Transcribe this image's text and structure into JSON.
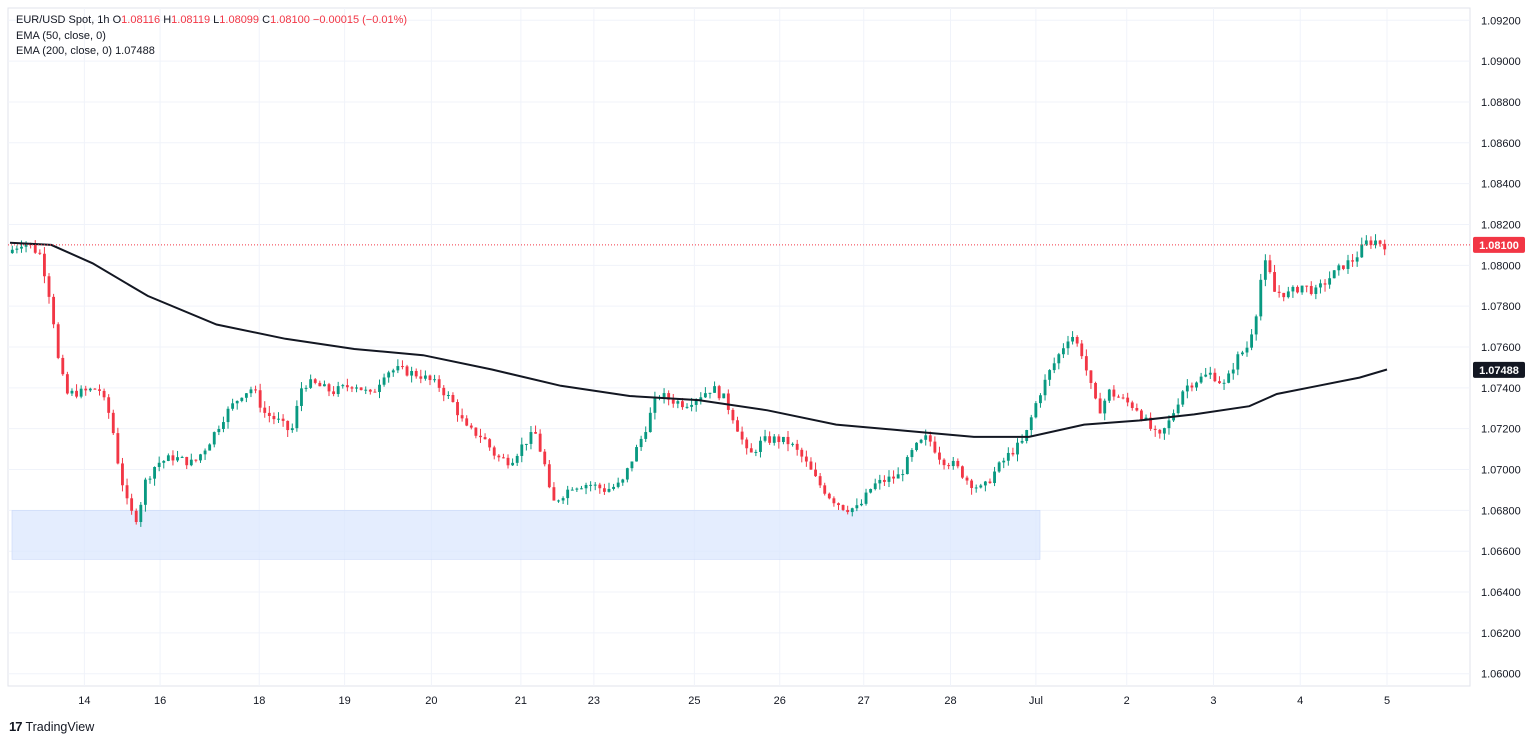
{
  "legend": {
    "symbol": "EUR/USD Spot, 1h",
    "o_label": "O",
    "o": "1.08116",
    "h_label": "H",
    "h": "1.08119",
    "l_label": "L",
    "l": "1.08099",
    "c_label": "C",
    "c": "1.08100",
    "change": "−0.00015 (−0.01%)",
    "ema50": "EMA (50, close, 0)",
    "ema200": "EMA (200, close, 0)",
    "ema200_value": "1.07488"
  },
  "brand": {
    "logo": "17",
    "name": "TradingView"
  },
  "colors": {
    "up": "#089981",
    "down": "#f23645",
    "ema200": "#131722",
    "zone": "#dbe7fd",
    "price_badge": "#f23645",
    "ema_badge": "#131722"
  },
  "chart_data": {
    "type": "candlestick",
    "symbol": "EUR/USD Spot",
    "interval": "1h",
    "ylim": [
      1.0594,
      1.0926
    ],
    "y_ticks": [
      "1.09200",
      "1.09000",
      "1.08800",
      "1.08600",
      "1.08400",
      "1.08200",
      "1.08000",
      "1.07800",
      "1.07600",
      "1.07400",
      "1.07200",
      "1.07000",
      "1.06800",
      "1.06600",
      "1.06400",
      "1.06200",
      "1.06000"
    ],
    "x_ticks": [
      {
        "label": "14",
        "t": 0.054
      },
      {
        "label": "16",
        "t": 0.109
      },
      {
        "label": "18",
        "t": 0.181
      },
      {
        "label": "19",
        "t": 0.243
      },
      {
        "label": "20",
        "t": 0.306
      },
      {
        "label": "21",
        "t": 0.371
      },
      {
        "label": "23",
        "t": 0.424
      },
      {
        "label": "25",
        "t": 0.497
      },
      {
        "label": "26",
        "t": 0.559
      },
      {
        "label": "27",
        "t": 0.62
      },
      {
        "label": "28",
        "t": 0.683
      },
      {
        "label": "Jul",
        "t": 0.745
      },
      {
        "label": "2",
        "t": 0.811
      },
      {
        "label": "3",
        "t": 0.874
      },
      {
        "label": "4",
        "t": 0.937
      },
      {
        "label": "5",
        "t": 1.0
      }
    ],
    "last_price": "1.08100",
    "ema200_last": "1.07488",
    "price_path": [
      [
        0,
        1.0806
      ],
      [
        0.012,
        1.0812
      ],
      [
        0.024,
        1.0805
      ],
      [
        0.032,
        1.078
      ],
      [
        0.037,
        1.0752
      ],
      [
        0.043,
        1.0737
      ],
      [
        0.055,
        1.0738
      ],
      [
        0.066,
        1.074
      ],
      [
        0.075,
        1.0725
      ],
      [
        0.081,
        1.07
      ],
      [
        0.088,
        1.068
      ],
      [
        0.094,
        1.0676
      ],
      [
        0.1,
        1.0694
      ],
      [
        0.108,
        1.0703
      ],
      [
        0.12,
        1.0706
      ],
      [
        0.135,
        1.0703
      ],
      [
        0.145,
        1.0712
      ],
      [
        0.158,
        1.0727
      ],
      [
        0.17,
        1.0737
      ],
      [
        0.178,
        1.074
      ],
      [
        0.186,
        1.0728
      ],
      [
        0.196,
        1.0724
      ],
      [
        0.206,
        1.0718
      ],
      [
        0.214,
        1.0742
      ],
      [
        0.222,
        1.0742
      ],
      [
        0.236,
        1.0738
      ],
      [
        0.252,
        1.0742
      ],
      [
        0.264,
        1.0736
      ],
      [
        0.274,
        1.0748
      ],
      [
        0.284,
        1.0749
      ],
      [
        0.3,
        1.0746
      ],
      [
        0.313,
        1.0741
      ],
      [
        0.323,
        1.0733
      ],
      [
        0.333,
        1.072
      ],
      [
        0.345,
        1.0716
      ],
      [
        0.355,
        1.0706
      ],
      [
        0.365,
        1.0704
      ],
      [
        0.375,
        1.0713
      ],
      [
        0.383,
        1.0718
      ],
      [
        0.39,
        1.0702
      ],
      [
        0.395,
        1.0683
      ],
      [
        0.41,
        1.0692
      ],
      [
        0.422,
        1.0693
      ],
      [
        0.434,
        1.069
      ],
      [
        0.446,
        1.0693
      ],
      [
        0.454,
        1.0706
      ],
      [
        0.462,
        1.0718
      ],
      [
        0.472,
        1.0737
      ],
      [
        0.482,
        1.0734
      ],
      [
        0.492,
        1.0732
      ],
      [
        0.502,
        1.0736
      ],
      [
        0.512,
        1.074
      ],
      [
        0.52,
        1.0735
      ],
      [
        0.528,
        1.0724
      ],
      [
        0.538,
        1.0706
      ],
      [
        0.548,
        1.0714
      ],
      [
        0.558,
        1.0715
      ],
      [
        0.568,
        1.0713
      ],
      [
        0.578,
        1.0705
      ],
      [
        0.588,
        1.0694
      ],
      [
        0.598,
        1.0686
      ],
      [
        0.608,
        1.0681
      ],
      [
        0.618,
        1.0681
      ],
      [
        0.628,
        1.0692
      ],
      [
        0.638,
        1.0695
      ],
      [
        0.648,
        1.0697
      ],
      [
        0.658,
        1.071
      ],
      [
        0.668,
        1.0716
      ],
      [
        0.678,
        1.0705
      ],
      [
        0.688,
        1.0702
      ],
      [
        0.698,
        1.0694
      ],
      [
        0.708,
        1.069
      ],
      [
        0.718,
        1.07
      ],
      [
        0.728,
        1.0708
      ],
      [
        0.738,
        1.0714
      ],
      [
        0.748,
        1.0735
      ],
      [
        0.756,
        1.0747
      ],
      [
        0.764,
        1.0757
      ],
      [
        0.772,
        1.0767
      ],
      [
        0.78,
        1.0757
      ],
      [
        0.786,
        1.0742
      ],
      [
        0.792,
        1.0728
      ],
      [
        0.8,
        1.0738
      ],
      [
        0.81,
        1.0734
      ],
      [
        0.82,
        1.073
      ],
      [
        0.83,
        1.072
      ],
      [
        0.836,
        1.0715
      ],
      [
        0.844,
        1.0724
      ],
      [
        0.854,
        1.074
      ],
      [
        0.864,
        1.0744
      ],
      [
        0.874,
        1.0747
      ],
      [
        0.884,
        1.0741
      ],
      [
        0.892,
        1.0754
      ],
      [
        0.9,
        1.076
      ],
      [
        0.906,
        1.0774
      ],
      [
        0.91,
        1.0793
      ],
      [
        0.914,
        1.0802
      ],
      [
        0.92,
        1.0787
      ],
      [
        0.93,
        1.0786
      ],
      [
        0.94,
        1.079
      ],
      [
        0.95,
        1.0787
      ],
      [
        0.96,
        1.0794
      ],
      [
        0.97,
        1.08
      ],
      [
        0.978,
        1.0803
      ],
      [
        0.986,
        1.0811
      ],
      [
        0.994,
        1.0812
      ],
      [
        1.0,
        1.081
      ]
    ],
    "ema200_path": [
      [
        0,
        1.0811
      ],
      [
        0.03,
        1.081
      ],
      [
        0.06,
        1.0801
      ],
      [
        0.1,
        1.0785
      ],
      [
        0.15,
        1.0771
      ],
      [
        0.2,
        1.0764
      ],
      [
        0.25,
        1.0759
      ],
      [
        0.3,
        1.0756
      ],
      [
        0.35,
        1.0749
      ],
      [
        0.4,
        1.0741
      ],
      [
        0.45,
        1.0736
      ],
      [
        0.5,
        1.0734
      ],
      [
        0.55,
        1.0729
      ],
      [
        0.6,
        1.0722
      ],
      [
        0.65,
        1.0719
      ],
      [
        0.7,
        1.0716
      ],
      [
        0.74,
        1.0716
      ],
      [
        0.78,
        1.0722
      ],
      [
        0.82,
        1.0724
      ],
      [
        0.86,
        1.0727
      ],
      [
        0.9,
        1.0731
      ],
      [
        0.92,
        1.0737
      ],
      [
        0.95,
        1.0741
      ],
      [
        0.98,
        1.0745
      ],
      [
        1.0,
        1.0749
      ]
    ],
    "support_zone": {
      "y_low": 1.0656,
      "y_high": 1.068,
      "t_start": 0.0,
      "t_end": 0.748
    },
    "grid": true
  }
}
